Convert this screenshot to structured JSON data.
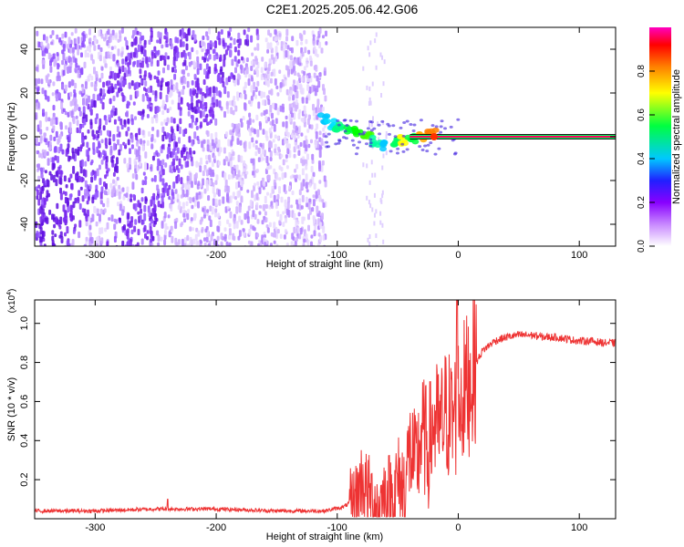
{
  "title": "C2E1.2025.205.06.42.G06",
  "chart_data": [
    {
      "type": "heatmap",
      "xlabel": "Height of straight line (km)",
      "ylabel": "Frequency (Hz)",
      "xlim": [
        -350,
        130
      ],
      "ylim": [
        -50,
        50
      ],
      "xticks": [
        -300,
        -200,
        -100,
        0,
        100
      ],
      "yticks": [
        -40,
        -20,
        0,
        20,
        40
      ],
      "colorbar": {
        "label": "Normalized spectral amplitude",
        "range": [
          0.0,
          1.0
        ],
        "ticks": [
          0.0,
          0.2,
          0.4,
          0.6,
          0.8
        ],
        "colors": [
          "#ffffff",
          "#8800ff",
          "#0000ff",
          "#00c8ff",
          "#00ff00",
          "#ffff00",
          "#ff8000",
          "#ff0000",
          "#ff00aa"
        ]
      },
      "features": {
        "noise_region_x": [
          -350,
          -110
        ],
        "signal_line_freq": 0,
        "signal_line_x_start": -110
      }
    },
    {
      "type": "line",
      "xlabel": "Height of straight line (km)",
      "ylabel": "SNR (10 * v/v)",
      "yscale_note": "(x10^4)",
      "xlim": [
        -350,
        130
      ],
      "ylim": [
        0,
        1.12
      ],
      "xticks": [
        -300,
        -200,
        -100,
        0,
        100
      ],
      "yticks": [
        0.2,
        0.4,
        0.6,
        0.8,
        1.0
      ],
      "color": "#ee3333",
      "series": [
        {
          "x": [
            -350,
            -300,
            -250,
            -200,
            -150,
            -110,
            -95,
            -85,
            -80,
            -75,
            -70,
            -65,
            -60,
            -55,
            -50,
            -45,
            -40,
            -35,
            -30,
            -25,
            -20,
            -15,
            -10,
            -5,
            0,
            5,
            10,
            15,
            20,
            30,
            40,
            50,
            60,
            70,
            80,
            90,
            100,
            110,
            120,
            130
          ],
          "values": [
            0.04,
            0.04,
            0.05,
            0.05,
            0.04,
            0.04,
            0.06,
            0.1,
            0.2,
            0.14,
            0.08,
            0.05,
            0.12,
            0.1,
            0.18,
            0.15,
            0.35,
            0.25,
            0.45,
            0.35,
            0.5,
            0.45,
            0.55,
            0.5,
            0.6,
            0.65,
            0.72,
            0.8,
            0.86,
            0.91,
            0.93,
            0.94,
            0.94,
            0.93,
            0.93,
            0.92,
            0.91,
            0.91,
            0.9,
            0.9
          ]
        }
      ]
    }
  ]
}
